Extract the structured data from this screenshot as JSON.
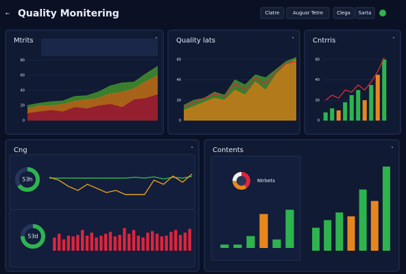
{
  "header": {
    "title": "Quality Monitering",
    "controls": [
      "Clatre",
      "Augusr Tetre",
      "Clega",
      "Sarta"
    ]
  },
  "panels": [
    {
      "title": "Mtrits"
    },
    {
      "title": "Quality lats"
    },
    {
      "title": "Cntrris"
    },
    {
      "title": "Cng"
    },
    {
      "title": "Contents"
    }
  ],
  "charts": [
    {
      "type": "area",
      "stacked": true,
      "ylim": [
        0,
        80
      ],
      "yticks": [
        0,
        20,
        40,
        60,
        80
      ],
      "series": [
        {
          "type": "area",
          "color": "#a3202f",
          "values": [
            10,
            12,
            14,
            12,
            18,
            16,
            20,
            22,
            18,
            28,
            30,
            35
          ]
        },
        {
          "type": "area",
          "color": "#b86a16",
          "values": [
            6,
            8,
            6,
            10,
            8,
            12,
            10,
            14,
            20,
            15,
            22,
            25
          ]
        },
        {
          "type": "area",
          "color": "#3f8a2e",
          "values": [
            4,
            3,
            5,
            4,
            6,
            5,
            8,
            10,
            12,
            8,
            10,
            12
          ]
        }
      ]
    },
    {
      "type": "area",
      "ylim": [
        0,
        70
      ],
      "yticks": [
        0,
        20,
        40,
        60
      ],
      "series": [
        {
          "type": "area",
          "color": "#3f8a2e",
          "values": [
            15,
            20,
            22,
            28,
            25,
            40,
            35,
            45,
            42,
            50,
            58,
            62
          ]
        },
        {
          "type": "area",
          "color": "#c07a18",
          "values": [
            10,
            14,
            18,
            22,
            20,
            30,
            25,
            38,
            30,
            45,
            55,
            60
          ]
        },
        {
          "type": "line",
          "color": "#d8283a",
          "values": [
            14,
            18,
            22,
            26,
            24,
            36,
            30,
            42,
            36,
            48,
            56,
            58
          ]
        }
      ]
    },
    {
      "type": "bar",
      "ylim": [
        0,
        70
      ],
      "yticks": [
        0,
        20,
        40,
        60
      ],
      "series": [
        {
          "type": "bar",
          "colors": [
            "#2fb34f",
            "#2fb34f",
            "#e8861e",
            "#2fb34f",
            "#2fb34f",
            "#2fb34f",
            "#e8861e",
            "#2fb34f",
            "#e8861e",
            "#2fb34f"
          ],
          "values": [
            8,
            12,
            10,
            18,
            25,
            30,
            20,
            35,
            45,
            60
          ]
        },
        {
          "type": "line",
          "color": "#d8283a",
          "values": [
            20,
            25,
            22,
            30,
            28,
            35,
            30,
            38,
            48,
            62
          ]
        }
      ]
    },
    {
      "type": "donut",
      "value": 65,
      "label": "53h",
      "color": "#2fb34f"
    },
    {
      "type": "line",
      "ylim": [
        0,
        100
      ],
      "series": [
        {
          "type": "line",
          "color": "#2fb34f",
          "values": [
            60,
            60,
            60,
            60,
            60,
            60,
            60,
            60,
            60,
            62,
            60,
            63,
            58,
            62,
            60,
            64
          ]
        },
        {
          "type": "line",
          "color": "#e8a01e",
          "values": [
            62,
            55,
            40,
            30,
            45,
            35,
            25,
            30,
            20,
            20,
            20,
            55,
            45,
            65,
            50,
            70
          ]
        }
      ]
    },
    {
      "type": "donut",
      "value": 75,
      "label": "53d",
      "color": "#2fb34f"
    },
    {
      "type": "bar",
      "ylim": [
        0,
        80
      ],
      "series": [
        {
          "type": "bar",
          "color": "#e0243c",
          "values": [
            35,
            45,
            30,
            40,
            38,
            42,
            55,
            40,
            48,
            35,
            40,
            45,
            50,
            38,
            42,
            60,
            45,
            55,
            40,
            35,
            48,
            52,
            45,
            38,
            40,
            50,
            55,
            42,
            48,
            58
          ]
        }
      ]
    },
    {
      "type": "pie",
      "values": [
        40,
        35,
        25
      ],
      "colors": [
        "#e0243c",
        "#e8861e",
        "#f2f2f2"
      ],
      "label": "Ntrbets"
    },
    {
      "type": "bar",
      "ylim": [
        0,
        50
      ],
      "series": [
        {
          "type": "bar",
          "colors": [
            "#2fb34f",
            "#2fb34f",
            "#2fb34f",
            "#e8861e",
            "#2fb34f",
            "#2fb34f"
          ],
          "values": [
            4,
            4,
            14,
            40,
            10,
            45
          ]
        }
      ]
    },
    {
      "type": "bar",
      "ylim": [
        0,
        120
      ],
      "series": [
        {
          "type": "bar",
          "colors": [
            "#2fb34f",
            "#2fb34f",
            "#2fb34f",
            "#e8861e",
            "#2fb34f",
            "#e8861e",
            "#2fb34f"
          ],
          "values": [
            30,
            40,
            50,
            45,
            80,
            65,
            110
          ]
        }
      ]
    }
  ]
}
